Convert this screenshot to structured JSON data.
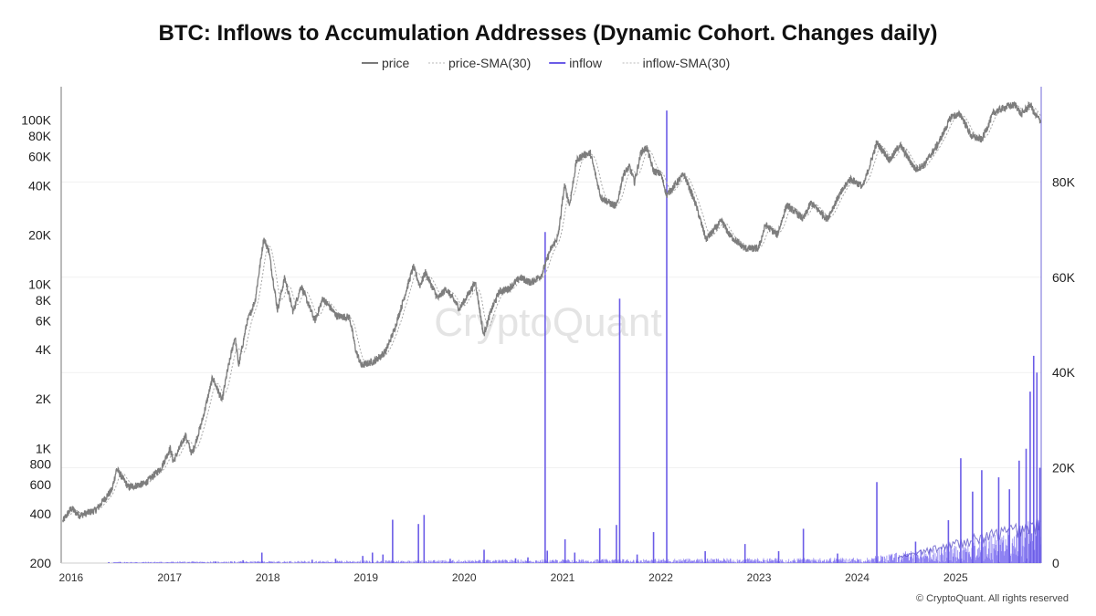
{
  "chart_data": {
    "type": "line",
    "title": "BTC: Inflows to Accumulation Addresses (Dynamic Cohort. Changes daily)",
    "legend": {
      "placement": "top-center",
      "entries": [
        {
          "label": "price",
          "color": "#7a7a7a",
          "style": "solid"
        },
        {
          "label": "price-SMA(30)",
          "color": "#b8b8b8",
          "style": "dashed"
        },
        {
          "label": "inflow",
          "color": "#6b5ce7",
          "style": "solid"
        },
        {
          "label": "inflow-SMA(30)",
          "color": "#b8b8b8",
          "style": "dashed"
        }
      ]
    },
    "x_axis": {
      "type": "date",
      "range": [
        "2015-11-25",
        "2025-11-15"
      ],
      "ticks": [
        "2016",
        "2017",
        "2018",
        "2019",
        "2020",
        "2021",
        "2022",
        "2023",
        "2024",
        "2025"
      ]
    },
    "y_left": {
      "scale": "log",
      "range": [
        200,
        160000
      ],
      "ticks": [
        {
          "v": 100000,
          "label": "100K"
        },
        {
          "v": 80000,
          "label": "80K"
        },
        {
          "v": 60000,
          "label": "60K"
        },
        {
          "v": 40000,
          "label": "40K"
        },
        {
          "v": 20000,
          "label": "20K"
        },
        {
          "v": 10000,
          "label": "10K"
        },
        {
          "v": 8000,
          "label": "8K"
        },
        {
          "v": 6000,
          "label": "6K"
        },
        {
          "v": 4000,
          "label": "4K"
        },
        {
          "v": 2000,
          "label": "2K"
        },
        {
          "v": 1000,
          "label": "1K"
        },
        {
          "v": 800,
          "label": "800"
        },
        {
          "v": 600,
          "label": "600"
        },
        {
          "v": 400,
          "label": "400"
        },
        {
          "v": 200,
          "label": "200"
        }
      ]
    },
    "y_right": {
      "scale": "linear",
      "range": [
        0,
        100000
      ],
      "ticks": [
        {
          "v": 80000,
          "label": "80K"
        },
        {
          "v": 60000,
          "label": "60K"
        },
        {
          "v": 40000,
          "label": "40K"
        },
        {
          "v": 20000,
          "label": "20K"
        },
        {
          "v": 0,
          "label": "0"
        }
      ]
    },
    "grid": "horizontal-light",
    "series": [
      {
        "name": "price",
        "axis": "left",
        "color": "#7a7a7a",
        "points": [
          [
            "2015-12-01",
            360
          ],
          [
            "2016-01-01",
            430
          ],
          [
            "2016-02-01",
            390
          ],
          [
            "2016-04-01",
            420
          ],
          [
            "2016-06-01",
            560
          ],
          [
            "2016-06-18",
            750
          ],
          [
            "2016-08-01",
            580
          ],
          [
            "2016-10-01",
            610
          ],
          [
            "2016-12-01",
            760
          ],
          [
            "2017-01-03",
            1000
          ],
          [
            "2017-01-15",
            830
          ],
          [
            "2017-03-01",
            1200
          ],
          [
            "2017-03-25",
            920
          ],
          [
            "2017-05-01",
            1450
          ],
          [
            "2017-06-10",
            2700
          ],
          [
            "2017-07-15",
            1950
          ],
          [
            "2017-08-01",
            2800
          ],
          [
            "2017-09-01",
            4800
          ],
          [
            "2017-09-15",
            3200
          ],
          [
            "2017-10-15",
            5800
          ],
          [
            "2017-11-15",
            8000
          ],
          [
            "2017-12-17",
            19000
          ],
          [
            "2018-01-05",
            16000
          ],
          [
            "2018-02-06",
            7000
          ],
          [
            "2018-03-05",
            11000
          ],
          [
            "2018-04-05",
            6800
          ],
          [
            "2018-05-05",
            9800
          ],
          [
            "2018-06-25",
            6000
          ],
          [
            "2018-07-25",
            8200
          ],
          [
            "2018-09-15",
            6400
          ],
          [
            "2018-11-01",
            6300
          ],
          [
            "2018-11-25",
            3900
          ],
          [
            "2018-12-15",
            3200
          ],
          [
            "2019-02-01",
            3400
          ],
          [
            "2019-03-15",
            3900
          ],
          [
            "2019-04-15",
            5200
          ],
          [
            "2019-05-20",
            8000
          ],
          [
            "2019-06-26",
            12800
          ],
          [
            "2019-07-20",
            9800
          ],
          [
            "2019-08-10",
            11800
          ],
          [
            "2019-09-25",
            8200
          ],
          [
            "2019-10-26",
            9400
          ],
          [
            "2019-12-15",
            7100
          ],
          [
            "2020-02-12",
            10300
          ],
          [
            "2020-03-13",
            4900
          ],
          [
            "2020-04-10",
            6900
          ],
          [
            "2020-05-10",
            9000
          ],
          [
            "2020-06-15",
            9400
          ],
          [
            "2020-07-27",
            11000
          ],
          [
            "2020-09-05",
            10200
          ],
          [
            "2020-10-15",
            11400
          ],
          [
            "2020-11-15",
            16000
          ],
          [
            "2020-12-15",
            19500
          ],
          [
            "2021-01-08",
            40000
          ],
          [
            "2021-01-27",
            30500
          ],
          [
            "2021-02-21",
            56000
          ],
          [
            "2021-03-14",
            61000
          ],
          [
            "2021-04-14",
            63000
          ],
          [
            "2021-05-23",
            34000
          ],
          [
            "2021-06-22",
            31500
          ],
          [
            "2021-07-20",
            29800
          ],
          [
            "2021-08-15",
            47000
          ],
          [
            "2021-09-07",
            52000
          ],
          [
            "2021-09-25",
            42000
          ],
          [
            "2021-10-20",
            64000
          ],
          [
            "2021-11-10",
            68000
          ],
          [
            "2021-12-05",
            49000
          ],
          [
            "2022-01-01",
            47000
          ],
          [
            "2022-01-23",
            35000
          ],
          [
            "2022-03-28",
            47000
          ],
          [
            "2022-05-10",
            31000
          ],
          [
            "2022-06-18",
            18800
          ],
          [
            "2022-08-15",
            24200
          ],
          [
            "2022-09-15",
            19800
          ],
          [
            "2022-11-10",
            16500
          ],
          [
            "2022-12-30",
            16500
          ],
          [
            "2023-01-25",
            23000
          ],
          [
            "2023-03-10",
            20000
          ],
          [
            "2023-04-14",
            30400
          ],
          [
            "2023-06-15",
            25000
          ],
          [
            "2023-07-13",
            31400
          ],
          [
            "2023-09-11",
            25000
          ],
          [
            "2023-10-25",
            34500
          ],
          [
            "2023-12-05",
            44000
          ],
          [
            "2024-01-23",
            39500
          ],
          [
            "2024-03-14",
            73000
          ],
          [
            "2024-05-01",
            57000
          ],
          [
            "2024-06-07",
            71000
          ],
          [
            "2024-08-05",
            50000
          ],
          [
            "2024-09-06",
            53500
          ],
          [
            "2024-10-29",
            72500
          ],
          [
            "2024-12-17",
            106000
          ],
          [
            "2025-01-20",
            108000
          ],
          [
            "2025-02-28",
            80000
          ],
          [
            "2025-04-08",
            76000
          ],
          [
            "2025-05-22",
            111000
          ],
          [
            "2025-07-14",
            122000
          ],
          [
            "2025-08-14",
            123500
          ],
          [
            "2025-09-01",
            108000
          ],
          [
            "2025-10-06",
            125000
          ],
          [
            "2025-10-22",
            108000
          ],
          [
            "2025-11-13",
            99000
          ]
        ]
      },
      {
        "name": "inflow",
        "axis": "right",
        "color": "#6b5ce7",
        "spikes": [
          [
            "2016-05-20",
            200
          ],
          [
            "2016-07-01",
            250
          ],
          [
            "2017-06-20",
            250
          ],
          [
            "2017-10-01",
            600
          ],
          [
            "2017-12-10",
            2200
          ],
          [
            "2018-06-15",
            700
          ],
          [
            "2018-09-10",
            900
          ],
          [
            "2018-12-20",
            1500
          ],
          [
            "2019-01-25",
            2200
          ],
          [
            "2019-03-05",
            1800
          ],
          [
            "2019-04-10",
            9100
          ],
          [
            "2019-07-15",
            8200
          ],
          [
            "2019-08-05",
            10100
          ],
          [
            "2019-11-10",
            900
          ],
          [
            "2020-03-15",
            2800
          ],
          [
            "2020-07-10",
            1000
          ],
          [
            "2020-08-25",
            1200
          ],
          [
            "2020-10-28",
            69500
          ],
          [
            "2020-11-05",
            2600
          ],
          [
            "2021-01-10",
            5000
          ],
          [
            "2021-02-15",
            2200
          ],
          [
            "2021-05-19",
            7300
          ],
          [
            "2021-07-20",
            8000
          ],
          [
            "2021-08-01",
            55500
          ],
          [
            "2021-10-05",
            1800
          ],
          [
            "2021-12-05",
            6500
          ],
          [
            "2022-01-23",
            95000
          ],
          [
            "2022-06-15",
            2500
          ],
          [
            "2022-11-10",
            4000
          ],
          [
            "2023-03-15",
            2500
          ],
          [
            "2023-06-15",
            7200
          ],
          [
            "2023-10-20",
            2000
          ],
          [
            "2024-03-14",
            17000
          ],
          [
            "2024-08-05",
            4500
          ],
          [
            "2024-12-05",
            9000
          ],
          [
            "2025-01-20",
            22000
          ],
          [
            "2025-03-05",
            15000
          ],
          [
            "2025-04-08",
            19500
          ],
          [
            "2025-06-10",
            18000
          ],
          [
            "2025-07-20",
            15500
          ],
          [
            "2025-08-25",
            21500
          ],
          [
            "2025-09-20",
            24000
          ],
          [
            "2025-10-05",
            36000
          ],
          [
            "2025-10-18",
            43500
          ],
          [
            "2025-10-30",
            40000
          ],
          [
            "2025-11-10",
            20000
          ]
        ]
      }
    ],
    "watermark": "CryptoQuant",
    "copyright": "© CryptoQuant. All rights reserved"
  }
}
